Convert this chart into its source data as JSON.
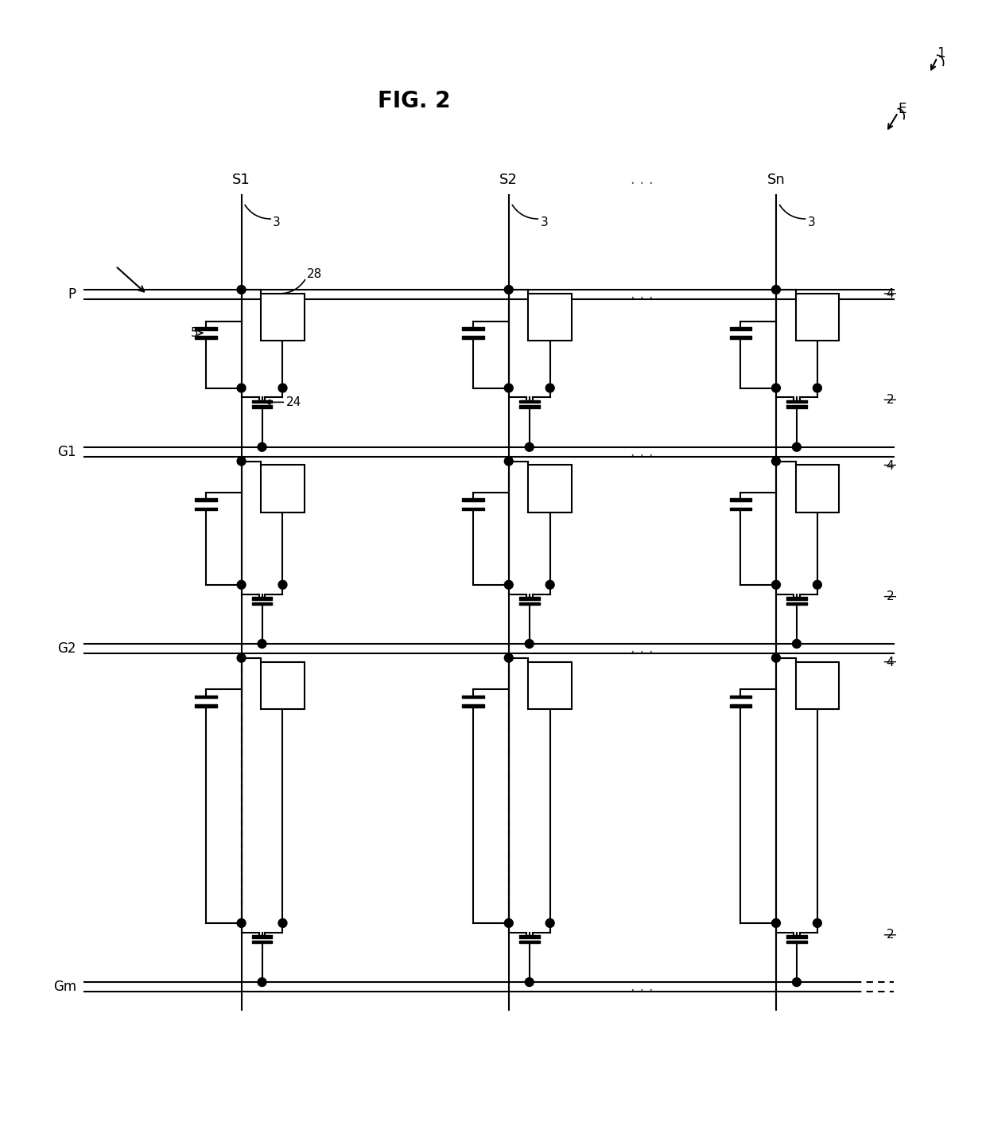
{
  "title": "FIG. 2",
  "bg_color": "#ffffff",
  "fig_width": 12.4,
  "fig_height": 14.3,
  "labels": {
    "fig_title": "FIG. 2",
    "ref1": "1",
    "refE": "E",
    "S1": "S1",
    "S2": "S2",
    "Sn": "Sn",
    "G1": "G1",
    "G2": "G2",
    "Gm": "Gm",
    "P": "P",
    "ref3": "3",
    "ref4": "4",
    "ref5": "5",
    "ref24": "24",
    "ref28": "28",
    "ref2": "2"
  },
  "colors": {
    "line": "#000000",
    "bg": "#ffffff"
  }
}
